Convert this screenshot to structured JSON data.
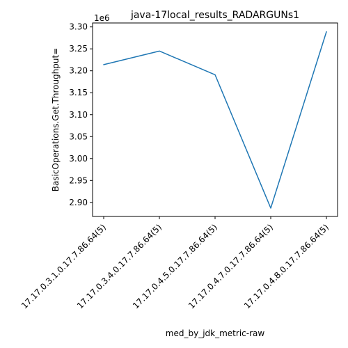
{
  "chart_data": {
    "type": "line",
    "title": "java-17local_results_RADARGUNs1",
    "xlabel": "med_by_jdk_metric-raw",
    "ylabel": "BasicOperations.Get.Throughput=",
    "y_offset_label": "1e6",
    "categories": [
      "17.17.0.3.1.0.17.7.86.64(5)",
      "17.17.0.3.4.0.17.7.86.64(5)",
      "17.17.0.4.5.0.17.7.86.64(5)",
      "17.17.0.4.7.0.17.7.86.64(5)",
      "17.17.0.4.8.0.17.7.86.64(5)"
    ],
    "series": [
      {
        "values": [
          3214000,
          3245000,
          3191000,
          2887000,
          3289000
        ],
        "color": "#1f77b4"
      }
    ],
    "y_ticks": [
      2.9,
      2.95,
      3.0,
      3.05,
      3.1,
      3.15,
      3.2,
      3.25,
      3.3
    ],
    "y_tick_labels": [
      "2.90",
      "2.95",
      "3.00",
      "3.05",
      "3.10",
      "3.15",
      "3.20",
      "3.25",
      "3.30"
    ],
    "y_tick_multiplier": 1000000,
    "ylim": [
      2868000,
      3309000
    ],
    "grid": false,
    "legend": "none"
  }
}
